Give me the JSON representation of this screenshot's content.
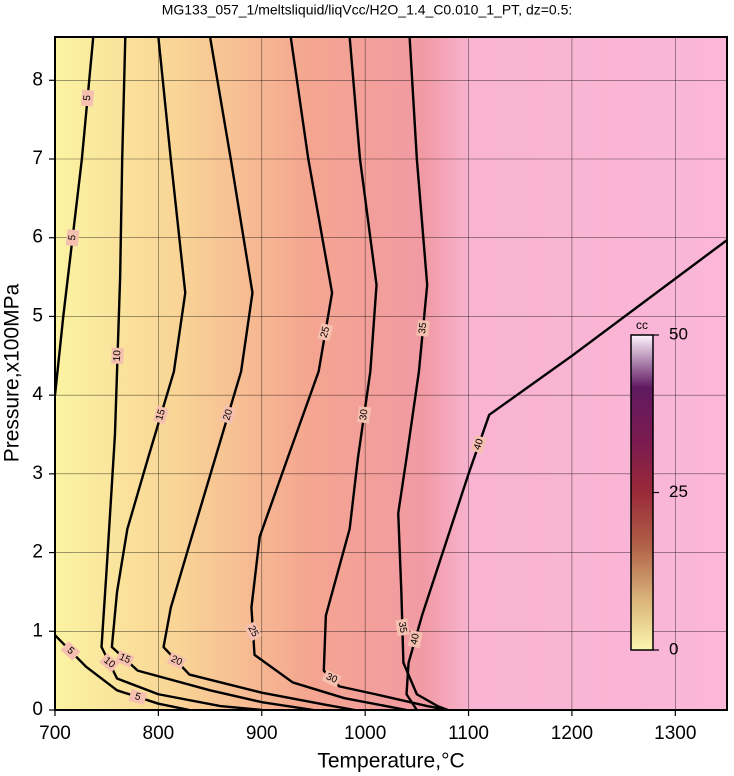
{
  "chart_data": {
    "type": "contour",
    "title": "MG133_057_1/meltsliquid/liqVcc/H2O_1.4_C0.010_1_PT, dz=0.5:",
    "x_label": "Temperature,°C",
    "y_label": "Pressure,x100MPa",
    "xlim": [
      700,
      1350
    ],
    "ylim": [
      0,
      8.55
    ],
    "xticks": [
      700,
      800,
      900,
      1000,
      1100,
      1200,
      1300
    ],
    "yticks": [
      0,
      1,
      2,
      3,
      4,
      5,
      6,
      7,
      8
    ],
    "grid": true,
    "contours": [
      {
        "level": 5,
        "x": [
          737,
          726,
          708,
          700,
          null,
          700,
          730,
          760,
          800,
          830
        ],
        "y": [
          8.55,
          7,
          5,
          4,
          null,
          0.95,
          0.55,
          0.25,
          0.08,
          0
        ]
      },
      {
        "level": 10,
        "x": [
          768,
          765,
          763,
          758,
          750,
          745,
          760,
          800,
          860,
          900
        ],
        "y": [
          8.55,
          7,
          5.5,
          3.5,
          1.8,
          0.8,
          0.4,
          0.2,
          0.05,
          0
        ]
      },
      {
        "level": 15,
        "x": [
          800,
          812,
          826,
          815,
          790,
          770,
          760,
          755,
          780,
          850,
          900,
          950
        ],
        "y": [
          8.55,
          7,
          5.3,
          4.3,
          3.2,
          2.3,
          1.5,
          0.8,
          0.5,
          0.25,
          0.1,
          0
        ]
      },
      {
        "level": 20,
        "x": [
          850,
          870,
          891,
          880,
          855,
          830,
          812,
          805,
          830,
          900,
          960,
          990
        ],
        "y": [
          8.55,
          7,
          5.3,
          4.3,
          3.2,
          2.1,
          1.3,
          0.8,
          0.45,
          0.22,
          0.07,
          0
        ]
      },
      {
        "level": 25,
        "x": [
          928,
          945,
          968,
          955,
          925,
          898,
          890,
          893,
          930,
          980,
          1040
        ],
        "y": [
          8.55,
          7,
          5.3,
          4.3,
          3.2,
          2.2,
          1.3,
          0.7,
          0.35,
          0.15,
          0
        ]
      },
      {
        "level": 30,
        "x": [
          985,
          995,
          1011,
          1005,
          993,
          985,
          962,
          960,
          975,
          1010,
          1060,
          1080
        ],
        "y": [
          8.55,
          7,
          5.4,
          4.3,
          3.2,
          2.3,
          1.2,
          0.5,
          0.3,
          0.2,
          0.05,
          0
        ]
      },
      {
        "level": 35,
        "x": [
          1043,
          1050,
          1060,
          1052,
          1040,
          1032,
          1035,
          1037,
          1050,
          1070,
          1080
        ],
        "y": [
          8.55,
          7,
          5.4,
          4.3,
          3.2,
          2.5,
          1.5,
          0.6,
          0.2,
          0.05,
          0
        ]
      },
      {
        "level": 40,
        "x": [
          1350,
          1200,
          1120,
          1100,
          1075,
          1055,
          1042,
          1040,
          1050
        ],
        "y": [
          5.97,
          4.5,
          3.75,
          3,
          2,
          1.2,
          0.6,
          0.2,
          0
        ]
      }
    ],
    "colorbar": {
      "label": "cc",
      "clim": [
        0,
        50
      ],
      "ticks": [
        0,
        25,
        50
      ],
      "colors": [
        "#fbf6b0",
        "#d8b078",
        "#b06048",
        "#9a2a3a",
        "#7a1a50",
        "#601a60",
        "#fff4ff"
      ]
    }
  }
}
